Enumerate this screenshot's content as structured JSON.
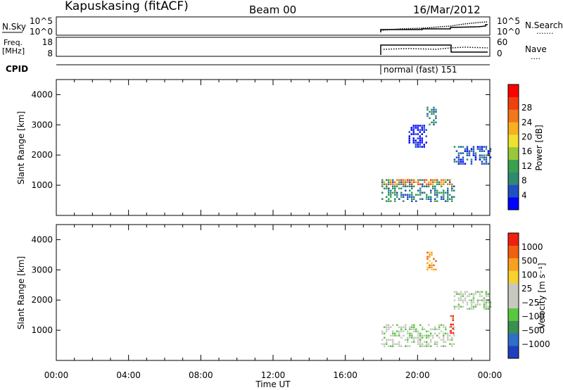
{
  "header": {
    "station": "Kapuskasing (fitACF)",
    "beam": "Beam 00",
    "date": "16/Mar/2012"
  },
  "nsky_panel": {
    "left_label": "N.Sky",
    "left_ticks": [
      "10^5",
      "10^0"
    ],
    "right_ticks": [
      "10^5",
      "10^0"
    ],
    "right_label": "N.Search",
    "right_line_sample": "......."
  },
  "freq_panel": {
    "left_label_1": "Freq.",
    "left_label_2": "[MHz]",
    "left_ticks": [
      "18",
      "8"
    ],
    "right_ticks": [
      "60",
      "0"
    ],
    "right_label": "Nave",
    "right_line_sample": "...."
  },
  "cpid": {
    "label": "CPID",
    "mode_text": "normal (fast) 151"
  },
  "chart_data": [
    {
      "type": "heatmap",
      "parameter": "power",
      "ylabel": "Slant Range [km]",
      "ylim": [
        0,
        4500
      ],
      "yticks": [
        1000,
        2000,
        3000,
        4000
      ],
      "xlim": [
        0,
        24
      ],
      "colorbar": {
        "label": "Power [dB]",
        "ticks": [
          "4",
          "8",
          "12",
          "16",
          "20",
          "24",
          "28"
        ],
        "colors": [
          "#0000ff",
          "#1f4fc0",
          "#2f8a6f",
          "#3aa050",
          "#98c83a",
          "#f0e030",
          "#f8b020",
          "#f07818",
          "#f04010",
          "#ff0000"
        ]
      },
      "regions": [
        {
          "t": [
            18.0,
            22.0
          ],
          "r": [
            500,
            1200
          ],
          "level": 2
        },
        {
          "t": [
            18.0,
            22.0
          ],
          "r": [
            1050,
            1200
          ],
          "level": 7
        },
        {
          "t": [
            22.0,
            24.0
          ],
          "r": [
            1700,
            2300
          ],
          "level": 1
        },
        {
          "t": [
            20.5,
            21.0
          ],
          "r": [
            3000,
            3600
          ],
          "level": 2
        },
        {
          "t": [
            19.5,
            20.5
          ],
          "r": [
            2300,
            3000
          ],
          "level": 0
        }
      ]
    },
    {
      "type": "heatmap",
      "parameter": "velocity",
      "ylabel": "Slant Range [km]",
      "ylim": [
        0,
        4500
      ],
      "yticks": [
        1000,
        2000,
        3000,
        4000
      ],
      "xlim": [
        0,
        24
      ],
      "xticks": [
        "00:00",
        "04:00",
        "08:00",
        "12:00",
        "16:00",
        "20:00",
        "00:00"
      ],
      "xlabel": "Time UT",
      "colorbar": {
        "label": "Velocity [m s⁻¹]",
        "ticks": [
          "1000",
          "500",
          "100",
          "25",
          "−25",
          "−100",
          "−500",
          "−1000"
        ],
        "colors": [
          "#1f3fc0",
          "#2f6fc8",
          "#3a9050",
          "#58c840",
          "#c8c8c0",
          "#c8c8c0",
          "#f8d030",
          "#f8a020",
          "#f06010",
          "#f02010"
        ]
      },
      "regions": [
        {
          "t": [
            18.0,
            22.0
          ],
          "r": [
            500,
            1200
          ],
          "level": 4
        },
        {
          "t": [
            22.0,
            24.0
          ],
          "r": [
            1700,
            2300
          ],
          "level": 4
        },
        {
          "t": [
            20.5,
            21.0
          ],
          "r": [
            3000,
            3600
          ],
          "level": 7
        },
        {
          "t": [
            21.8,
            22.0
          ],
          "r": [
            900,
            1500
          ],
          "level": 9
        }
      ]
    }
  ]
}
